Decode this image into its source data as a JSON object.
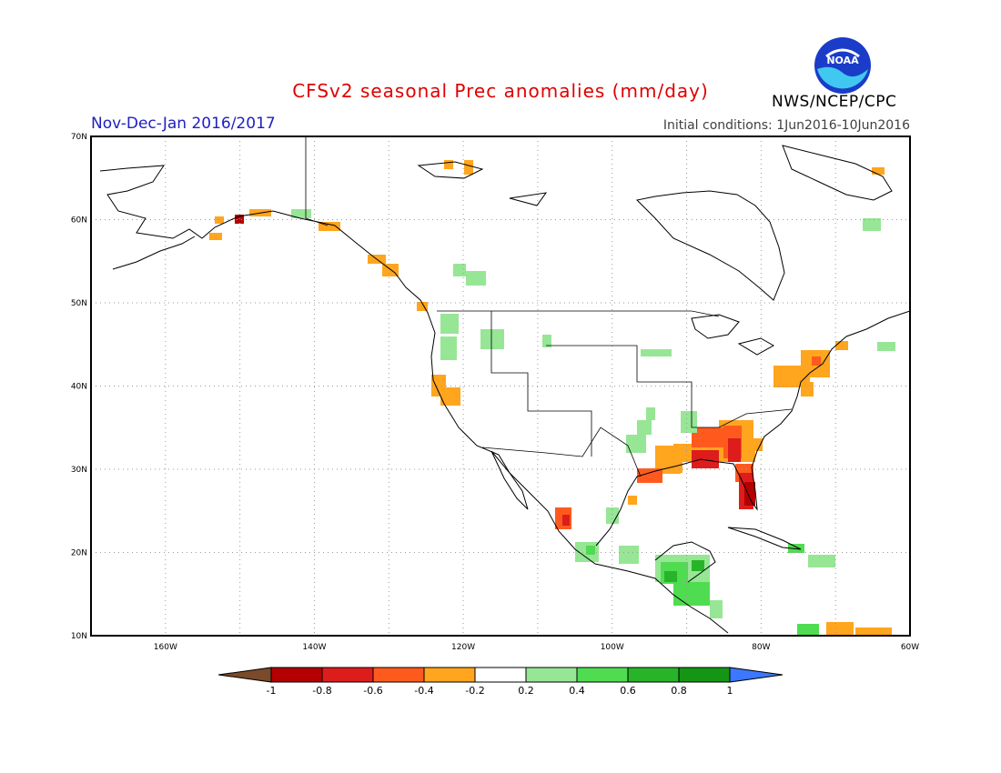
{
  "header": {
    "title": "CFSv2 seasonal Prec anomalies (mm/day)",
    "period": "Nov-Dec-Jan 2016/2017",
    "initial_conditions": "Initial conditions: 1Jun2016-10Jun2016",
    "agency": "NWS/NCEP/CPC",
    "logo_text": "NOAA"
  },
  "map": {
    "projection": "lat-lon",
    "lon_range": [
      -170,
      -60
    ],
    "lat_range": [
      10,
      70
    ],
    "lat_labels": [
      "10N",
      "20N",
      "30N",
      "40N",
      "50N",
      "60N",
      "70N"
    ],
    "lon_labels": [
      "160W",
      "140W",
      "120W",
      "100W",
      "80W",
      "60W"
    ],
    "grid": true
  },
  "colorbar": {
    "labels": [
      "-1",
      "-0.8",
      "-0.6",
      "-0.4",
      "-0.2",
      "0.2",
      "0.4",
      "0.6",
      "0.8",
      "1"
    ],
    "colors": [
      "#7a4a2a",
      "#b40000",
      "#dd1c1c",
      "#ff5a1e",
      "#ffa51e",
      "#ffffff",
      "#96e696",
      "#50dc50",
      "#28b428",
      "#149614",
      "#3c78ff"
    ]
  },
  "anomaly_regions": [
    {
      "region": "Florida / Southeast US",
      "anomaly": "dry",
      "level": "-1 to -0.6"
    },
    {
      "region": "Gulf Coast",
      "anomaly": "dry",
      "level": "-0.6 to -0.2"
    },
    {
      "region": "Mid-Atlantic / Northeast US",
      "anomaly": "dry",
      "level": "-0.4 to -0.2"
    },
    {
      "region": "California",
      "anomaly": "dry",
      "level": "-0.4 to -0.2"
    },
    {
      "region": "Southern Alaska coast",
      "anomaly": "dry",
      "level": "-0.4 to -0.2"
    },
    {
      "region": "Pacific Northwest",
      "anomaly": "wet",
      "level": "0.2 to 0.4"
    },
    {
      "region": "Central America",
      "anomaly": "wet",
      "level": "0.2 to 0.8"
    },
    {
      "region": "Ohio Valley",
      "anomaly": "wet",
      "level": "0.2 to 0.4"
    }
  ]
}
